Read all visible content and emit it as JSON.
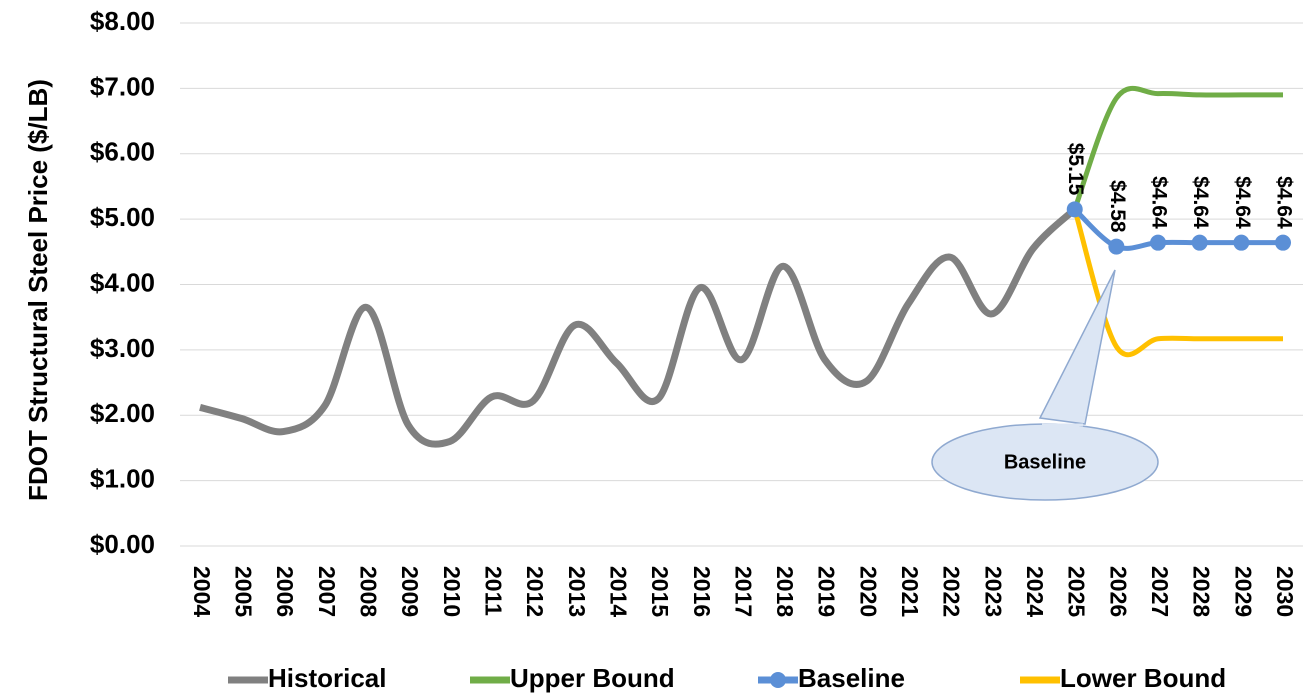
{
  "chart_data": {
    "type": "line",
    "y_label": "FDOT Structural Steel Price ($/LB)",
    "categories": [
      "2004",
      "2005",
      "2006",
      "2007",
      "2008",
      "2009",
      "2010",
      "2011",
      "2012",
      "2013",
      "2014",
      "2015",
      "2016",
      "2017",
      "2018",
      "2019",
      "2020",
      "2021",
      "2022",
      "2023",
      "2024",
      "2025",
      "2026",
      "2027",
      "2028",
      "2029",
      "2030"
    ],
    "series": [
      {
        "name": "Historical",
        "color": "#808080",
        "values": [
          2.12,
          1.95,
          1.75,
          2.15,
          3.65,
          1.85,
          1.6,
          2.28,
          2.22,
          3.38,
          2.8,
          2.25,
          3.95,
          2.85,
          4.28,
          2.85,
          2.52,
          3.7,
          4.42,
          3.55,
          4.55,
          5.15,
          null,
          null,
          null,
          null,
          null
        ]
      },
      {
        "name": "Upper Bound",
        "color": "#70ad47",
        "values": [
          null,
          null,
          null,
          null,
          null,
          null,
          null,
          null,
          null,
          null,
          null,
          null,
          null,
          null,
          null,
          null,
          null,
          null,
          null,
          null,
          null,
          5.15,
          6.85,
          6.92,
          6.9,
          6.9,
          6.9
        ]
      },
      {
        "name": "Baseline",
        "color": "#5b8fd6",
        "markers": true,
        "values": [
          null,
          null,
          null,
          null,
          null,
          null,
          null,
          null,
          null,
          null,
          null,
          null,
          null,
          null,
          null,
          null,
          null,
          null,
          null,
          null,
          null,
          5.15,
          4.58,
          4.64,
          4.64,
          4.64,
          4.64
        ],
        "value_labels": [
          null,
          null,
          null,
          null,
          null,
          null,
          null,
          null,
          null,
          null,
          null,
          null,
          null,
          null,
          null,
          null,
          null,
          null,
          null,
          null,
          null,
          "$5.15",
          "$4.58",
          "$4.64",
          "$4.64",
          "$4.64",
          "$4.64"
        ]
      },
      {
        "name": "Lower Bound",
        "color": "#ffc000",
        "values": [
          null,
          null,
          null,
          null,
          null,
          null,
          null,
          null,
          null,
          null,
          null,
          null,
          null,
          null,
          null,
          null,
          null,
          null,
          null,
          null,
          null,
          5.15,
          3.05,
          3.17,
          3.17,
          3.17,
          3.17
        ]
      }
    ],
    "ylim": [
      0,
      8
    ],
    "yticks": [
      {
        "value": 0,
        "label": "$0.00"
      },
      {
        "value": 1,
        "label": "$1.00"
      },
      {
        "value": 2,
        "label": "$2.00"
      },
      {
        "value": 3,
        "label": "$3.00"
      },
      {
        "value": 4,
        "label": "$4.00"
      },
      {
        "value": 5,
        "label": "$5.00"
      },
      {
        "value": 6,
        "label": "$6.00"
      },
      {
        "value": 7,
        "label": "$7.00"
      },
      {
        "value": 8,
        "label": "$8.00"
      }
    ],
    "grid": true,
    "annotation": "Baseline",
    "legend": "bottom"
  }
}
